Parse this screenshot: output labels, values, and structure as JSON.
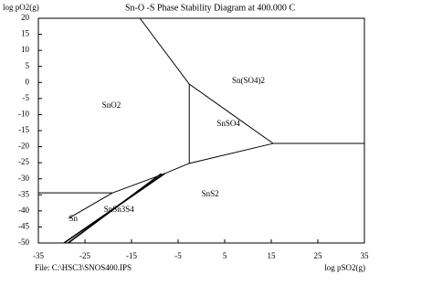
{
  "chart_data": {
    "type": "line",
    "title": "Sn-O -S Phase Stability Diagram at  400.000 C",
    "xlabel": "log pSO2(g)",
    "ylabel": "log pO2(g)",
    "note": "File: C:\\HSC3\\SNOS400.IPS",
    "xlim": [
      -35,
      35
    ],
    "ylim": [
      -50,
      20
    ],
    "xticks": [
      -35,
      -25,
      -15,
      -5,
      5,
      15,
      25,
      35
    ],
    "yticks": [
      20,
      15,
      10,
      5,
      0,
      -5,
      -10,
      -15,
      -20,
      -25,
      -30,
      -35,
      -40,
      -45,
      -50
    ],
    "color": "#000000",
    "lines": [
      {
        "x": [
          -13.2,
          -2.6,
          15.4,
          35
        ],
        "y": [
          20,
          -0.5,
          -19,
          -19
        ]
      },
      {
        "x": [
          -2.6,
          -2.6
        ],
        "y": [
          -0.5,
          -25.2
        ]
      },
      {
        "x": [
          15.4,
          -2.6,
          -7.9,
          -19.1,
          -35
        ],
        "y": [
          -19,
          -25.2,
          -28.4,
          -34.4,
          -34.4
        ]
      },
      {
        "x": [
          -19.1,
          -28.5
        ],
        "y": [
          -34.4,
          -42.3
        ]
      },
      {
        "x": [
          -7.9,
          -29.5
        ],
        "y": [
          -28.4,
          -50
        ]
      },
      {
        "x": [
          -8.6,
          -28.6
        ],
        "y": [
          -28.4,
          -50
        ]
      }
    ],
    "annotations": [
      {
        "text": "SnO2",
        "x": -19.3,
        "y": -7.3
      },
      {
        "text": "Sn(SO4)2",
        "x": 10.1,
        "y": 0.4
      },
      {
        "text": "SnSO4",
        "x": 5.8,
        "y": -13
      },
      {
        "text": "SnS2",
        "x": 1.9,
        "y": -34.9
      },
      {
        "text": "Sn",
        "x": -27.5,
        "y": -42.6
      },
      {
        "text": "SnSn3S4",
        "x": -17.7,
        "y": -39.8
      }
    ]
  }
}
